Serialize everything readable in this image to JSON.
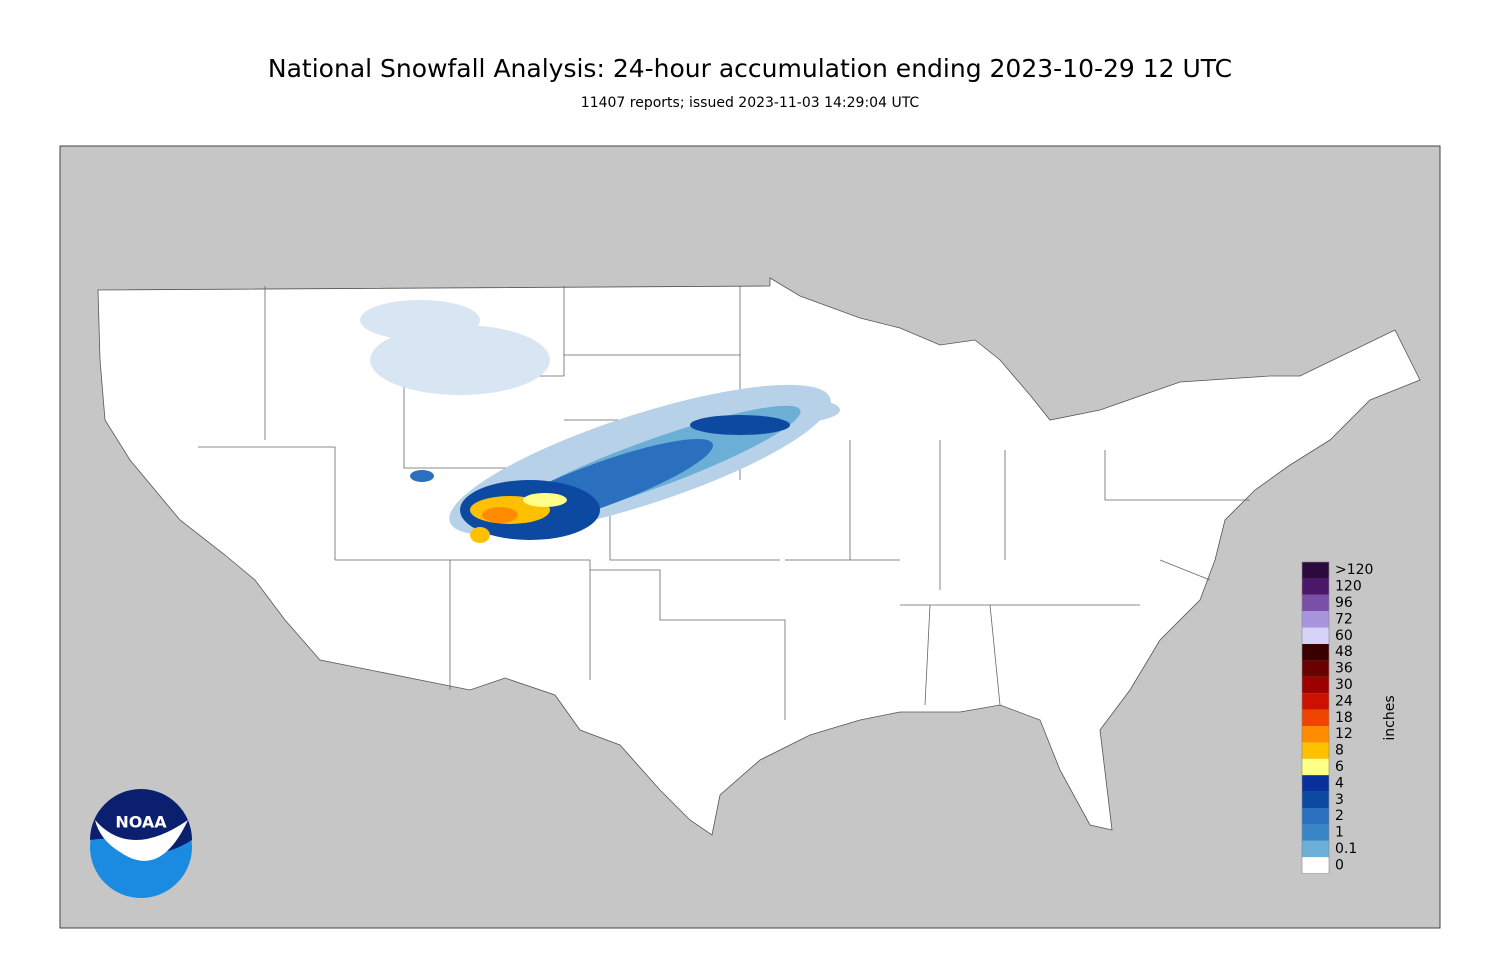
{
  "title": "National Snowfall Analysis: 24-hour accumulation ending 2023-10-29 12 UTC",
  "subtitle": "11407 reports; issued 2023-11-03 14:29:04 UTC",
  "logo": "NOAA",
  "legend": {
    "unit": "inches",
    "entries": [
      {
        "label": ">120",
        "color": "#2b0a3d"
      },
      {
        "label": "120",
        "color": "#4b176b"
      },
      {
        "label": "96",
        "color": "#7a4fa8"
      },
      {
        "label": "72",
        "color": "#a995dd"
      },
      {
        "label": "60",
        "color": "#d6d2fa"
      },
      {
        "label": "48",
        "color": "#3a0000"
      },
      {
        "label": "36",
        "color": "#6b0000"
      },
      {
        "label": "30",
        "color": "#9c0000"
      },
      {
        "label": "24",
        "color": "#cc1100"
      },
      {
        "label": "18",
        "color": "#ee4400"
      },
      {
        "label": "12",
        "color": "#ff8c00"
      },
      {
        "label": "8",
        "color": "#ffc000"
      },
      {
        "label": "6",
        "color": "#ffff88"
      },
      {
        "label": "4",
        "color": "#08309a"
      },
      {
        "label": "3",
        "color": "#0b4aa0"
      },
      {
        "label": "2",
        "color": "#2b6fbf"
      },
      {
        "label": "1",
        "color": "#3a85c8"
      },
      {
        "label": "0.1",
        "color": "#6baed6"
      },
      {
        "label": "0",
        "color": "#ffffff"
      }
    ]
  }
}
